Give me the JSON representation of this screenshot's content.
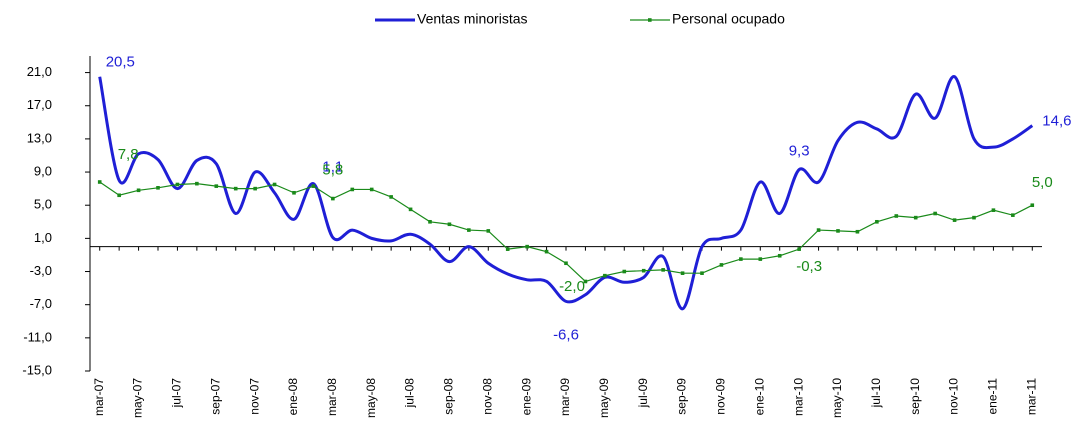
{
  "chart_data": {
    "type": "line",
    "categories": [
      "mar-07",
      null,
      "may-07",
      null,
      "jul-07",
      null,
      "sep-07",
      null,
      "nov-07",
      null,
      "ene-08",
      null,
      "mar-08",
      null,
      "may-08",
      null,
      "jul-08",
      null,
      "sep-08",
      null,
      "nov-08",
      null,
      "ene-09",
      null,
      "mar-09",
      null,
      "may-09",
      null,
      "jul-09",
      null,
      "sep-09",
      null,
      "nov-09",
      null,
      "ene-10",
      null,
      "mar-10",
      null,
      "may-10",
      null,
      "jul-10",
      null,
      "sep-10",
      null,
      "nov-10",
      null,
      "ene-11",
      null,
      "mar-11"
    ],
    "series": [
      {
        "name": "Ventas minoristas",
        "color": "#1f1fd6",
        "values": [
          20.5,
          8.0,
          11.2,
          10.5,
          7.0,
          10.4,
          10.0,
          4.0,
          9.0,
          6.5,
          3.3,
          7.6,
          1.1,
          2.0,
          1.0,
          0.7,
          1.5,
          0.3,
          -1.8,
          0.0,
          -2.0,
          -3.3,
          -4.0,
          -4.2,
          -6.6,
          -5.8,
          -3.7,
          -4.3,
          -3.7,
          -1.2,
          -7.5,
          0.0,
          1.0,
          2.0,
          7.8,
          4.0,
          9.3,
          7.8,
          12.8,
          15.0,
          14.2,
          13.3,
          18.4,
          15.5,
          20.5,
          13.0,
          12.0,
          13.0,
          14.6
        ],
        "value_labels": [
          "20,5",
          null,
          null,
          null,
          null,
          null,
          null,
          null,
          null,
          null,
          null,
          null,
          "1,1",
          null,
          null,
          null,
          null,
          null,
          null,
          null,
          null,
          null,
          null,
          null,
          "-6,6",
          null,
          null,
          null,
          null,
          null,
          null,
          null,
          null,
          null,
          null,
          null,
          "9,3",
          null,
          null,
          null,
          null,
          null,
          null,
          null,
          null,
          null,
          null,
          null,
          "14,6"
        ]
      },
      {
        "name": "Personal ocupado",
        "color": "#1a8a1a",
        "values": [
          7.8,
          6.2,
          6.8,
          7.1,
          7.5,
          7.6,
          7.3,
          7.0,
          7.0,
          7.5,
          6.5,
          7.3,
          5.8,
          6.9,
          6.9,
          6.0,
          4.5,
          3.0,
          2.7,
          2.0,
          1.9,
          -0.3,
          0.0,
          -0.6,
          -2.0,
          -4.2,
          -3.5,
          -3.0,
          -2.9,
          -2.8,
          -3.2,
          -3.2,
          -2.2,
          -1.5,
          -1.5,
          -1.1,
          -0.3,
          2.0,
          1.9,
          1.8,
          3.0,
          3.7,
          3.5,
          4.0,
          3.2,
          3.5,
          4.4,
          3.8,
          5.0
        ],
        "value_labels": [
          "7,8",
          null,
          null,
          null,
          null,
          null,
          null,
          null,
          null,
          null,
          null,
          null,
          "5,8",
          null,
          null,
          null,
          null,
          null,
          null,
          null,
          null,
          null,
          null,
          null,
          "-2,0",
          null,
          null,
          null,
          null,
          null,
          null,
          null,
          null,
          null,
          null,
          null,
          "-0,3",
          null,
          null,
          null,
          null,
          null,
          null,
          null,
          null,
          null,
          null,
          null,
          "5,0"
        ]
      }
    ],
    "ylim": [
      -15,
      23
    ],
    "yticks": [
      {
        "value": -15,
        "label": "-15,0"
      },
      {
        "value": -11,
        "label": "-11,0"
      },
      {
        "value": -7,
        "label": "-7,0"
      },
      {
        "value": -3,
        "label": "-3,0"
      },
      {
        "value": 1,
        "label": "1,0"
      },
      {
        "value": 5,
        "label": "5,0"
      },
      {
        "value": 9,
        "label": "9,0"
      },
      {
        "value": 13,
        "label": "13,0"
      },
      {
        "value": 17,
        "label": "17,0"
      },
      {
        "value": 21,
        "label": "21,0"
      }
    ],
    "grid": false,
    "legend": "top"
  }
}
